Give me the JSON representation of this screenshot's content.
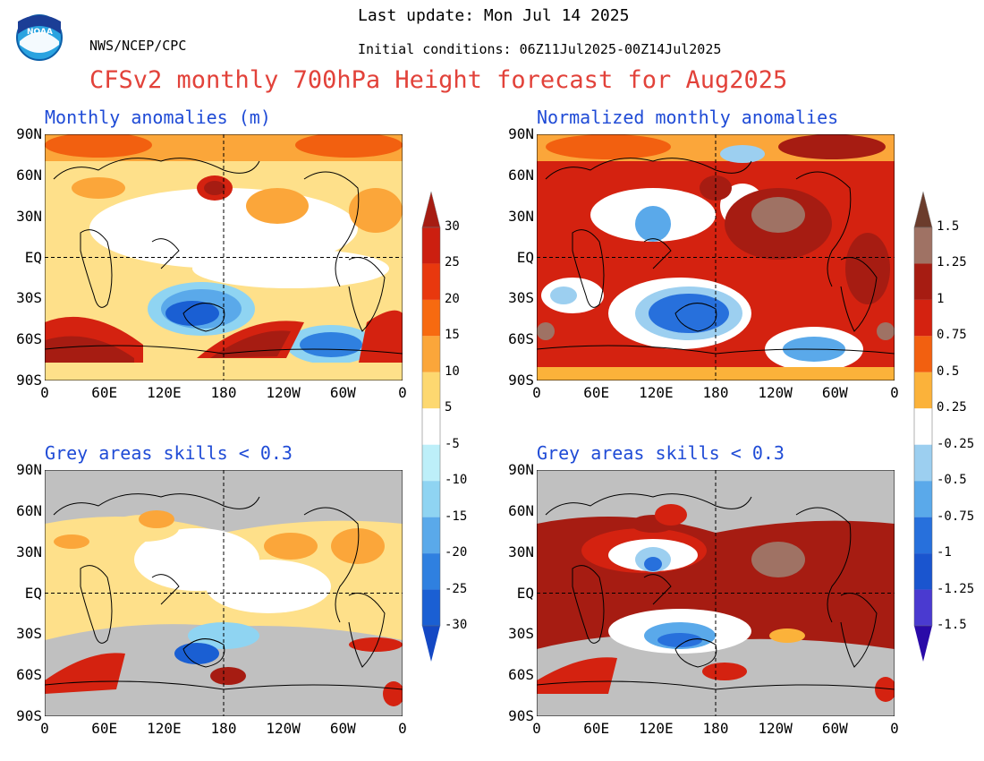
{
  "header": {
    "agency": "NWS/NCEP/CPC",
    "last_update": "Last update: Mon Jul 14 2025",
    "initial_conditions": "Initial conditions: 06Z11Jul2025-00Z14Jul2025",
    "main_title": "CFSv2 monthly 700hPa Height forecast for Aug2025",
    "logo_text": "NOAA"
  },
  "panels": {
    "top_left": {
      "title": "Monthly anomalies (m)"
    },
    "top_right": {
      "title": "Normalized monthly anomalies"
    },
    "bottom_left": {
      "title": "Grey areas skills < 0.3"
    },
    "bottom_right": {
      "title": "Grey areas skills < 0.3"
    }
  },
  "axes": {
    "y_ticks": [
      "90N",
      "60N",
      "30N",
      "EQ",
      "30S",
      "60S",
      "90S"
    ],
    "x_ticks": [
      "0",
      "60E",
      "120E",
      "180",
      "120W",
      "60W",
      "0"
    ]
  },
  "colorbar_left": {
    "labels": [
      "30",
      "25",
      "20",
      "15",
      "10",
      "5",
      "-5",
      "-10",
      "-15",
      "-20",
      "-25",
      "-30"
    ],
    "colors": [
      "#a61c12",
      "#cc1f10",
      "#e8380e",
      "#f76a10",
      "#fba63a",
      "#fdd870",
      "#ffffff",
      "#bdeff9",
      "#8fd4f2",
      "#5aa9ea",
      "#2f80e0",
      "#1a5fd3",
      "#1448c4"
    ]
  },
  "colorbar_right": {
    "labels": [
      "1.5",
      "1.25",
      "1",
      "0.75",
      "0.5",
      "0.25",
      "-0.25",
      "-0.5",
      "-0.75",
      "-1",
      "-1.25",
      "-1.5"
    ],
    "colors": [
      "#6b3c2c",
      "#9f7264",
      "#a61c12",
      "#d42210",
      "#f26010",
      "#fbb23a",
      "#ffffff",
      "#9ccff0",
      "#5aa9ea",
      "#2770dc",
      "#1a55cf",
      "#4a3ad0",
      "#2a0aa8"
    ]
  },
  "map_colors": {
    "grey": "#c0c0c0",
    "light_yellow": "#fee08a",
    "orange": "#fba63a",
    "red_orange": "#f26010",
    "red": "#d42210",
    "dark_red": "#a61c12",
    "brown": "#9f7264",
    "light_blue": "#bdeff9",
    "mid_blue": "#5aa9ea",
    "dark_blue": "#1a5fd3"
  }
}
